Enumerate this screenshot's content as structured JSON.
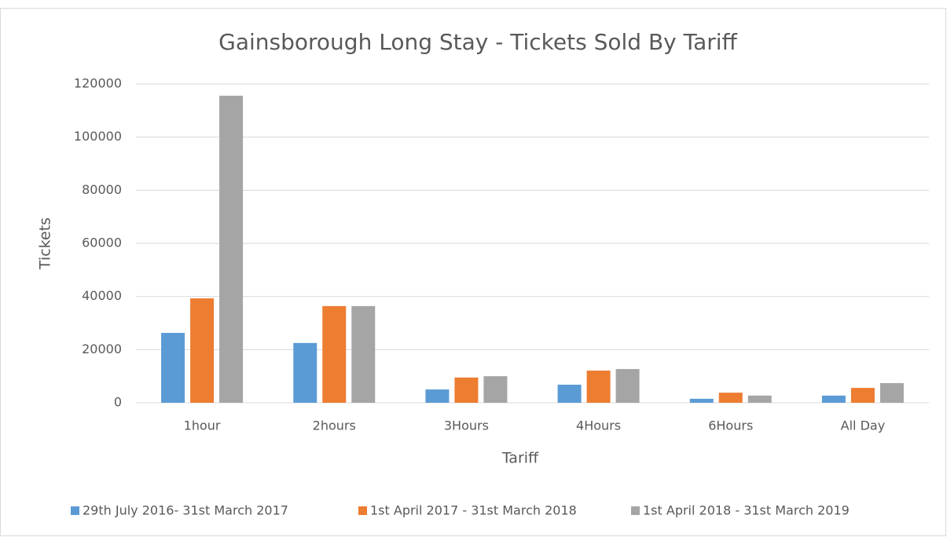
{
  "chart_data": {
    "type": "bar",
    "title": "Gainsborough Long Stay - Tickets Sold By Tariff",
    "x_label": "Tariff",
    "y_label": "Tickets",
    "categories": [
      "1hour",
      "2hours",
      "3Hours",
      "4Hours",
      "6Hours",
      "All Day"
    ],
    "series": [
      {
        "name": "29th July 2016- 31st March 2017",
        "color": "#5b9bd5",
        "values": [
          26300,
          22500,
          5000,
          6800,
          1500,
          2700
        ]
      },
      {
        "name": "1st April 2017 - 31st March 2018",
        "color": "#ed7d31",
        "values": [
          39300,
          36400,
          9500,
          12100,
          3800,
          5600
        ]
      },
      {
        "name": "1st April 2018 - 31st March 2019",
        "color": "#a5a5a5",
        "values": [
          115600,
          36400,
          10000,
          12700,
          2700,
          7400
        ]
      }
    ],
    "ylim": [
      0,
      120000
    ],
    "yticks": [
      0,
      20000,
      40000,
      60000,
      80000,
      100000,
      120000
    ],
    "grid": true,
    "legend": "bottom"
  }
}
